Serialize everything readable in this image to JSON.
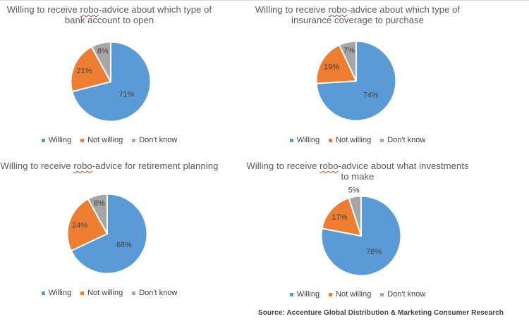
{
  "background": "#ffffff",
  "palette": [
    "#5B9BD5",
    "#ED7D31",
    "#A6A6A6"
  ],
  "label_color": "#404040",
  "title_color": "#595959",
  "squiggle_color": "#d43a2a",
  "legend_labels": [
    "Willing",
    "Not willing",
    "Don't know"
  ],
  "source_note": "Source: Accenture Global Distribution & Marketing Consumer Research",
  "chart_data": [
    {
      "type": "pie",
      "title": "Willing to receive robo-advice about which type of bank account to open",
      "title_parts": {
        "pre": "Willing to receive ",
        "flagged": "robo",
        "post": "-advice about which type of bank account to open"
      },
      "categories": [
        "Willing",
        "Not willing",
        "Don't know"
      ],
      "values": [
        71,
        21,
        8
      ],
      "value_unit": "%",
      "start_angle_deg": 0,
      "direction": "clockwise",
      "legend_position": "bottom"
    },
    {
      "type": "pie",
      "title": "Willing to receive robo-advice about which type of insurance coverage to purchase",
      "title_parts": {
        "pre": "Willing to receive ",
        "flagged": "robo",
        "post": "-advice about which type of insurance coverage to purchase"
      },
      "categories": [
        "Willing",
        "Not willing",
        "Don't know"
      ],
      "values": [
        74,
        19,
        7
      ],
      "value_unit": "%",
      "start_angle_deg": 0,
      "direction": "clockwise",
      "legend_position": "bottom"
    },
    {
      "type": "pie",
      "title": "Willing to receive robo-advice for retirement planning",
      "title_parts": {
        "pre": "Willing to receive ",
        "flagged": "robo",
        "post": "-advice for retirement planning"
      },
      "categories": [
        "Willing",
        "Not willing",
        "Don't know"
      ],
      "values": [
        68,
        24,
        8
      ],
      "value_unit": "%",
      "start_angle_deg": 0,
      "direction": "clockwise",
      "legend_position": "bottom"
    },
    {
      "type": "pie",
      "title": "Willing to receive robo-advice about what investments to make",
      "title_parts": {
        "pre": "Willing to receive ",
        "flagged": "robo",
        "post": "-advice about what investments to make"
      },
      "categories": [
        "Willing",
        "Not willing",
        "Don't know"
      ],
      "values": [
        78,
        17,
        5
      ],
      "value_unit": "%",
      "start_angle_deg": 0,
      "direction": "clockwise",
      "legend_position": "bottom"
    }
  ]
}
